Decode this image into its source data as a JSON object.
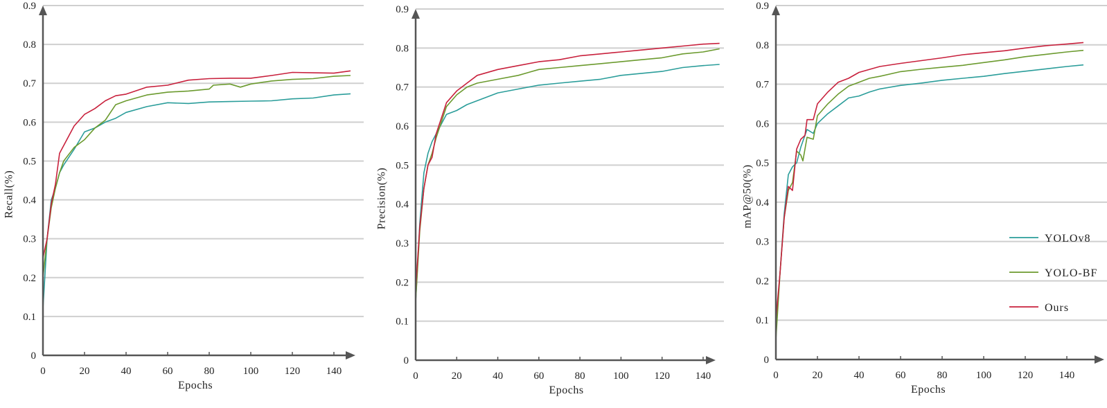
{
  "colors": {
    "YOLOv8": "#2a9d9a",
    "YOLO-BF": "#6b9a2e",
    "Ours": "#c8203c",
    "grid": "#cfcfcf",
    "axis": "#555555"
  },
  "legend": {
    "placement": "bottom-right of third panel",
    "entries": [
      "YOLOv8",
      "YOLO-BF",
      "Ours"
    ]
  },
  "chart_data": [
    {
      "type": "line",
      "xlabel": "Epochs",
      "ylabel": "Recall(%)",
      "xlim": [
        0,
        148
      ],
      "ylim": [
        0,
        0.9
      ],
      "xticks": [
        0,
        20,
        40,
        60,
        80,
        100,
        120,
        140
      ],
      "yticks": [
        0,
        0.1,
        0.2,
        0.3,
        0.4,
        0.5,
        0.6,
        0.7,
        0.8,
        0.9
      ],
      "grid": "horizontal",
      "series": [
        {
          "name": "YOLOv8",
          "x": [
            0,
            2,
            4,
            6,
            8,
            10,
            15,
            20,
            25,
            30,
            35,
            40,
            50,
            60,
            70,
            80,
            90,
            100,
            110,
            120,
            130,
            140,
            148
          ],
          "y": [
            0.12,
            0.3,
            0.4,
            0.43,
            0.47,
            0.49,
            0.53,
            0.575,
            0.585,
            0.6,
            0.61,
            0.625,
            0.64,
            0.65,
            0.648,
            0.652,
            0.653,
            0.654,
            0.655,
            0.66,
            0.662,
            0.67,
            0.673
          ]
        },
        {
          "name": "YOLO-BF",
          "x": [
            0,
            2,
            4,
            6,
            8,
            10,
            15,
            20,
            25,
            30,
            35,
            40,
            50,
            60,
            70,
            80,
            82,
            90,
            95,
            100,
            110,
            120,
            130,
            140,
            148
          ],
          "y": [
            0.2,
            0.3,
            0.38,
            0.43,
            0.47,
            0.5,
            0.535,
            0.555,
            0.585,
            0.605,
            0.645,
            0.655,
            0.67,
            0.677,
            0.68,
            0.685,
            0.695,
            0.698,
            0.69,
            0.698,
            0.706,
            0.71,
            0.712,
            0.718,
            0.72
          ]
        },
        {
          "name": "Ours",
          "x": [
            0,
            2,
            4,
            6,
            8,
            10,
            15,
            20,
            25,
            30,
            35,
            40,
            50,
            60,
            70,
            80,
            90,
            100,
            110,
            120,
            130,
            140,
            148
          ],
          "y": [
            0.25,
            0.3,
            0.39,
            0.44,
            0.52,
            0.54,
            0.59,
            0.62,
            0.635,
            0.655,
            0.668,
            0.672,
            0.69,
            0.695,
            0.708,
            0.712,
            0.713,
            0.713,
            0.72,
            0.728,
            0.727,
            0.726,
            0.732
          ]
        }
      ]
    },
    {
      "type": "line",
      "xlabel": "Epochs",
      "ylabel": "Precision(%)",
      "xlim": [
        0,
        148
      ],
      "ylim": [
        0,
        0.9
      ],
      "xticks": [
        0,
        20,
        40,
        60,
        80,
        100,
        120,
        140
      ],
      "yticks": [
        0,
        0.1,
        0.2,
        0.3,
        0.4,
        0.5,
        0.6,
        0.7,
        0.8,
        0.9
      ],
      "grid": "horizontal",
      "series": [
        {
          "name": "YOLOv8",
          "x": [
            0,
            2,
            4,
            6,
            8,
            10,
            15,
            20,
            25,
            30,
            40,
            50,
            60,
            70,
            80,
            90,
            100,
            110,
            120,
            130,
            140,
            148
          ],
          "y": [
            0.15,
            0.35,
            0.48,
            0.53,
            0.56,
            0.58,
            0.63,
            0.64,
            0.655,
            0.665,
            0.685,
            0.695,
            0.705,
            0.71,
            0.715,
            0.72,
            0.73,
            0.735,
            0.74,
            0.75,
            0.755,
            0.758
          ]
        },
        {
          "name": "YOLO-BF",
          "x": [
            0,
            2,
            4,
            6,
            8,
            10,
            15,
            20,
            25,
            30,
            40,
            50,
            60,
            70,
            80,
            90,
            100,
            110,
            120,
            130,
            140,
            148
          ],
          "y": [
            0.15,
            0.33,
            0.44,
            0.5,
            0.53,
            0.57,
            0.65,
            0.68,
            0.7,
            0.71,
            0.72,
            0.73,
            0.745,
            0.75,
            0.755,
            0.76,
            0.765,
            0.77,
            0.775,
            0.785,
            0.79,
            0.798
          ]
        },
        {
          "name": "Ours",
          "x": [
            0,
            2,
            4,
            6,
            8,
            10,
            15,
            20,
            25,
            30,
            40,
            50,
            60,
            70,
            80,
            90,
            100,
            110,
            120,
            130,
            140,
            148
          ],
          "y": [
            0.18,
            0.34,
            0.44,
            0.5,
            0.52,
            0.58,
            0.66,
            0.69,
            0.71,
            0.73,
            0.745,
            0.755,
            0.765,
            0.77,
            0.78,
            0.785,
            0.79,
            0.795,
            0.8,
            0.805,
            0.81,
            0.812
          ]
        }
      ]
    },
    {
      "type": "line",
      "xlabel": "Epochs",
      "ylabel": "mAP@50(%)",
      "xlim": [
        0,
        148
      ],
      "ylim": [
        0,
        0.9
      ],
      "xticks": [
        0,
        20,
        40,
        60,
        80,
        100,
        120,
        140
      ],
      "yticks": [
        0,
        0.1,
        0.2,
        0.3,
        0.4,
        0.5,
        0.6,
        0.7,
        0.8,
        0.9
      ],
      "grid": "horizontal",
      "series": [
        {
          "name": "YOLOv8",
          "x": [
            0,
            2,
            4,
            6,
            8,
            10,
            12,
            15,
            18,
            20,
            25,
            30,
            35,
            40,
            45,
            50,
            60,
            70,
            80,
            90,
            100,
            110,
            120,
            130,
            140,
            148
          ],
          "y": [
            0.08,
            0.22,
            0.37,
            0.47,
            0.49,
            0.5,
            0.54,
            0.585,
            0.575,
            0.6,
            0.625,
            0.645,
            0.665,
            0.67,
            0.68,
            0.688,
            0.697,
            0.703,
            0.71,
            0.715,
            0.72,
            0.727,
            0.733,
            0.739,
            0.745,
            0.749
          ]
        },
        {
          "name": "YOLO-BF",
          "x": [
            0,
            2,
            4,
            6,
            8,
            10,
            12,
            13,
            15,
            18,
            20,
            25,
            30,
            35,
            40,
            45,
            50,
            60,
            70,
            80,
            90,
            100,
            110,
            120,
            130,
            140,
            148
          ],
          "y": [
            0.05,
            0.22,
            0.36,
            0.43,
            0.45,
            0.53,
            0.52,
            0.505,
            0.565,
            0.56,
            0.62,
            0.65,
            0.675,
            0.695,
            0.705,
            0.715,
            0.72,
            0.732,
            0.738,
            0.743,
            0.748,
            0.755,
            0.762,
            0.77,
            0.776,
            0.782,
            0.786
          ]
        },
        {
          "name": "Ours",
          "x": [
            0,
            2,
            4,
            6,
            8,
            10,
            12,
            14,
            15,
            18,
            20,
            25,
            30,
            35,
            40,
            50,
            60,
            70,
            80,
            90,
            100,
            110,
            120,
            130,
            140,
            148
          ],
          "y": [
            0.1,
            0.22,
            0.36,
            0.44,
            0.43,
            0.535,
            0.56,
            0.57,
            0.61,
            0.61,
            0.65,
            0.68,
            0.705,
            0.715,
            0.73,
            0.745,
            0.753,
            0.76,
            0.767,
            0.775,
            0.78,
            0.785,
            0.792,
            0.798,
            0.802,
            0.806
          ]
        }
      ]
    }
  ]
}
